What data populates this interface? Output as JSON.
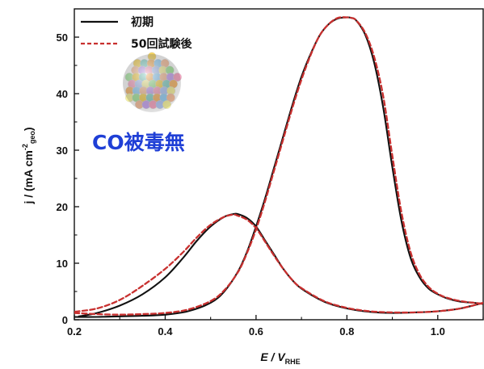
{
  "chart_data": {
    "type": "line",
    "xlabel": "E / V",
    "xlabel_sub": "RHE",
    "ylabel": "j / (mA cm",
    "ylabel_sup": "-2",
    "ylabel_sub": "geo",
    "ylabel_end": ")",
    "xlim": [
      0.2,
      1.1
    ],
    "ylim": [
      0,
      55
    ],
    "xticks": [
      "0.2",
      "0.4",
      "0.6",
      "0.8",
      "1.0"
    ],
    "yticks": [
      "0",
      "10",
      "20",
      "30",
      "40",
      "50"
    ],
    "legend": [
      "初期",
      "50回試験後"
    ],
    "legend_position": "top-left",
    "annotation": "CO被毒無",
    "colors": {
      "initial": "#111111",
      "after": "#c8302f",
      "annotation": "#1f3fd6"
    },
    "series": [
      {
        "name": "初期",
        "style": "solid",
        "forward": {
          "x": [
            0.2,
            0.25,
            0.3,
            0.35,
            0.4,
            0.45,
            0.5,
            0.53,
            0.56,
            0.58,
            0.6,
            0.62,
            0.64,
            0.66,
            0.68,
            0.7,
            0.72,
            0.74,
            0.76,
            0.78,
            0.8,
            0.81,
            0.82,
            0.84,
            0.86,
            0.88,
            0.9,
            0.92,
            0.94,
            0.96,
            0.98,
            1.0,
            1.02,
            1.05,
            1.08,
            1.1
          ],
          "y": [
            0.5,
            0.5,
            0.6,
            0.7,
            0.9,
            1.5,
            3.0,
            5.0,
            8.5,
            12.0,
            16.5,
            21.5,
            27.0,
            32.5,
            38.0,
            43.0,
            47.0,
            50.3,
            52.3,
            53.3,
            53.5,
            53.4,
            53.0,
            50.5,
            45.5,
            37.5,
            27.0,
            17.5,
            11.0,
            7.5,
            5.5,
            4.5,
            3.8,
            3.2,
            3.0,
            2.8
          ]
        },
        "backward": {
          "x": [
            1.1,
            1.05,
            1.0,
            0.95,
            0.9,
            0.85,
            0.8,
            0.75,
            0.7,
            0.68,
            0.66,
            0.64,
            0.62,
            0.6,
            0.58,
            0.56,
            0.55,
            0.53,
            0.5,
            0.47,
            0.44,
            0.4,
            0.35,
            0.3,
            0.25,
            0.21
          ],
          "y": [
            3.0,
            2.0,
            1.5,
            1.3,
            1.2,
            1.4,
            2.0,
            3.2,
            5.5,
            7.0,
            9.0,
            11.5,
            14.0,
            16.5,
            18.0,
            18.7,
            18.7,
            18.2,
            16.5,
            14.0,
            11.0,
            7.5,
            4.5,
            2.5,
            1.2,
            0.6
          ]
        }
      },
      {
        "name": "50回試験後",
        "style": "dashed",
        "forward": {
          "x": [
            0.2,
            0.25,
            0.3,
            0.35,
            0.4,
            0.45,
            0.5,
            0.53,
            0.56,
            0.58,
            0.6,
            0.62,
            0.64,
            0.66,
            0.68,
            0.7,
            0.72,
            0.74,
            0.76,
            0.78,
            0.8,
            0.81,
            0.82,
            0.84,
            0.86,
            0.88,
            0.9,
            0.92,
            0.94,
            0.96,
            0.98,
            1.0,
            1.02,
            1.05,
            1.08,
            1.1
          ],
          "y": [
            1.2,
            1.0,
            0.9,
            1.0,
            1.2,
            1.8,
            3.3,
            5.2,
            8.4,
            11.8,
            16.0,
            21.0,
            26.5,
            32.0,
            37.5,
            42.5,
            46.8,
            50.3,
            52.3,
            53.4,
            53.5,
            53.4,
            53.0,
            50.8,
            46.5,
            39.5,
            29.0,
            19.0,
            12.0,
            8.0,
            5.8,
            4.6,
            3.9,
            3.3,
            3.0,
            2.8
          ]
        },
        "backward": {
          "x": [
            1.1,
            1.05,
            1.0,
            0.95,
            0.9,
            0.85,
            0.8,
            0.75,
            0.7,
            0.68,
            0.66,
            0.64,
            0.62,
            0.6,
            0.58,
            0.56,
            0.55,
            0.53,
            0.5,
            0.47,
            0.44,
            0.4,
            0.35,
            0.3,
            0.25,
            0.2
          ],
          "y": [
            3.0,
            2.0,
            1.5,
            1.3,
            1.3,
            1.5,
            2.1,
            3.3,
            5.6,
            7.0,
            9.0,
            11.3,
            13.8,
            16.2,
            17.7,
            18.4,
            18.6,
            18.2,
            16.8,
            14.6,
            12.0,
            9.0,
            6.0,
            3.5,
            2.0,
            1.4
          ]
        }
      }
    ]
  }
}
